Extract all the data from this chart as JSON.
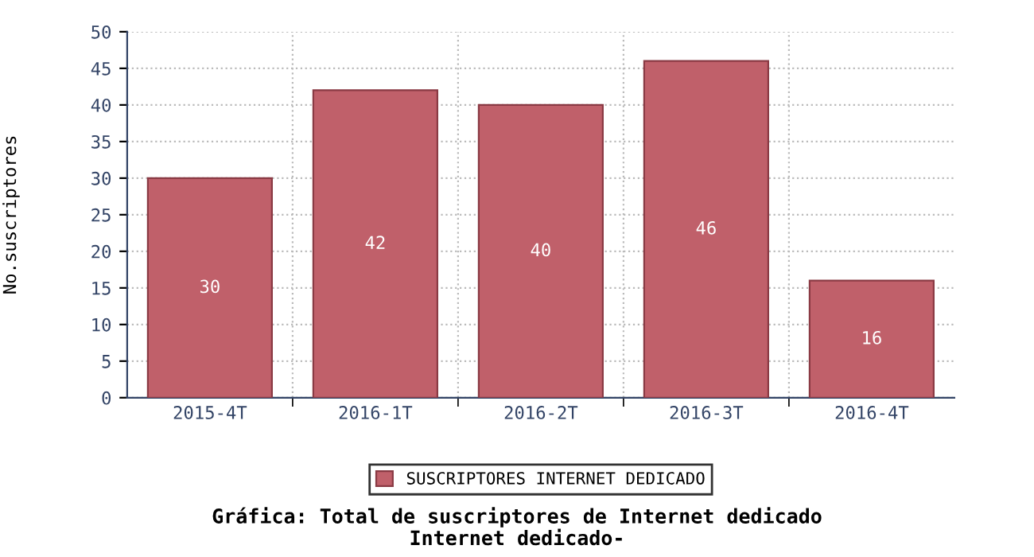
{
  "chart_data": {
    "type": "bar",
    "title": "Gráfica: Total de suscriptores de Internet dedicado",
    "subtitle": "Internet dedicado-",
    "ylabel": "No.suscriptores",
    "categories": [
      "2015-4T",
      "2016-1T",
      "2016-2T",
      "2016-3T",
      "2016-4T"
    ],
    "series": [
      {
        "name": "SUSCRIPTORES INTERNET DEDICADO",
        "color": "#c0606a",
        "values": [
          30,
          42,
          40,
          46,
          16
        ]
      }
    ],
    "ylim": [
      0,
      50
    ],
    "yticks": [
      0,
      5,
      10,
      15,
      20,
      25,
      30,
      35,
      40,
      45,
      50
    ],
    "grid": true,
    "legend": "bottom",
    "data_labels": true
  }
}
